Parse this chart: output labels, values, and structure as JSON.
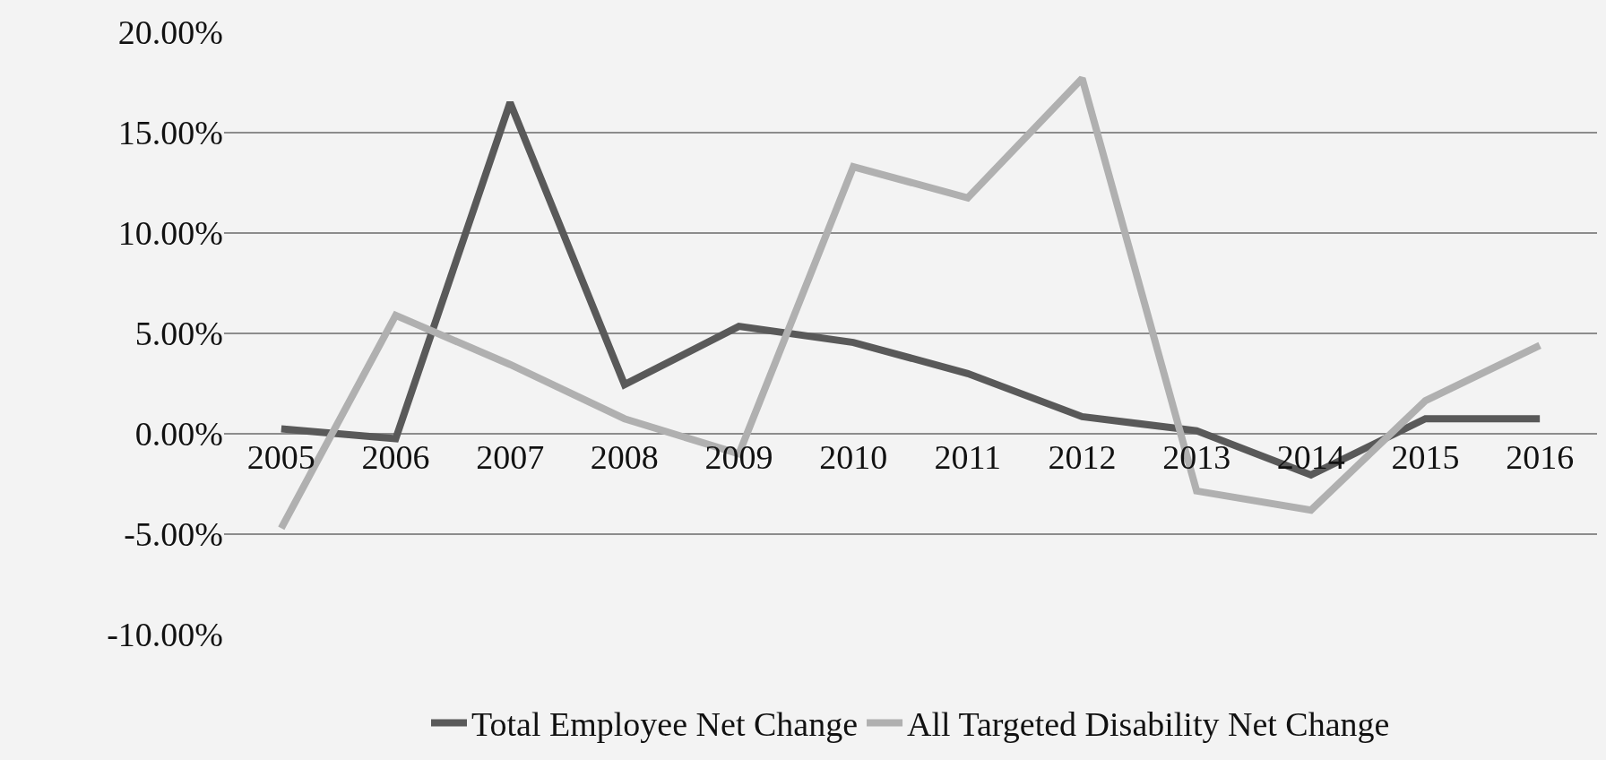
{
  "chart_data": {
    "type": "line",
    "categories": [
      "2005",
      "2006",
      "2007",
      "2008",
      "2009",
      "2010",
      "2011",
      "2012",
      "2013",
      "2014",
      "2015",
      "2016"
    ],
    "series": [
      {
        "name": "Total Employee Net Change",
        "color": "#595959",
        "values": [
          0.25,
          -0.25,
          16.5,
          2.45,
          5.35,
          4.55,
          3.0,
          0.85,
          0.15,
          -2.05,
          0.75,
          0.75
        ]
      },
      {
        "name": "All Targeted Disability Net Change",
        "color": "#b0b0b0",
        "values": [
          -4.7,
          5.9,
          3.45,
          0.75,
          -1.0,
          13.3,
          11.75,
          17.7,
          -2.85,
          -3.8,
          1.65,
          4.4
        ]
      }
    ],
    "ylim": [
      -10,
      20
    ],
    "yticks": [
      {
        "value": -10,
        "label": "-10.00%"
      },
      {
        "value": -5,
        "label": "-5.00%"
      },
      {
        "value": 0,
        "label": "0.00%"
      },
      {
        "value": 5,
        "label": "5.00%"
      },
      {
        "value": 10,
        "label": "10.00%"
      },
      {
        "value": 15,
        "label": "15.00%"
      },
      {
        "value": 20,
        "label": "20.00%"
      }
    ],
    "grid": "y",
    "legend": "bottom",
    "marker": "none",
    "line_style": "solid"
  }
}
